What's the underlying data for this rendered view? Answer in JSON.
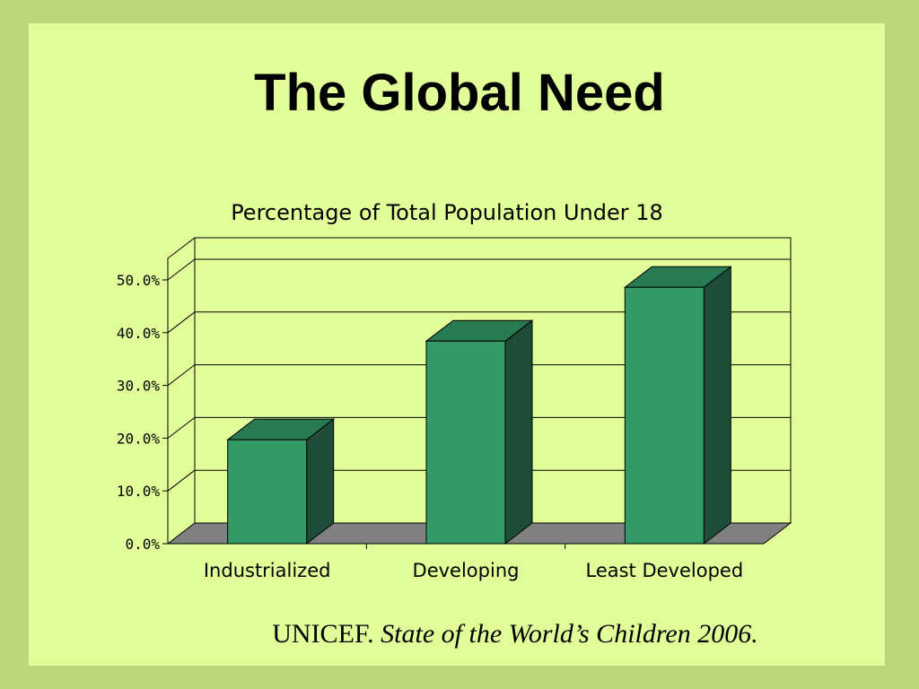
{
  "slide": {
    "title": "The Global Need",
    "colors": {
      "frame": "#bcd67a",
      "panel": "#e1fe98",
      "bar_front": "#339966",
      "bar_side": "#1e4d37",
      "bar_top": "#287a52",
      "floor": "#808080"
    }
  },
  "chart_data": {
    "type": "bar",
    "title": "Percentage of Total Population Under 18",
    "categories": [
      "Industrialized",
      "Developing",
      "Least Developed"
    ],
    "values": [
      19.7,
      38.4,
      48.6
    ],
    "ylim": [
      0,
      50
    ],
    "ytick_labels": [
      "0.0%",
      "10.0%",
      "20.0%",
      "30.0%",
      "40.0%",
      "50.0%"
    ],
    "grid": true,
    "three_d": true
  },
  "source": {
    "publisher": "UNICEF.",
    "work": "State of the World’s Children 2006."
  }
}
